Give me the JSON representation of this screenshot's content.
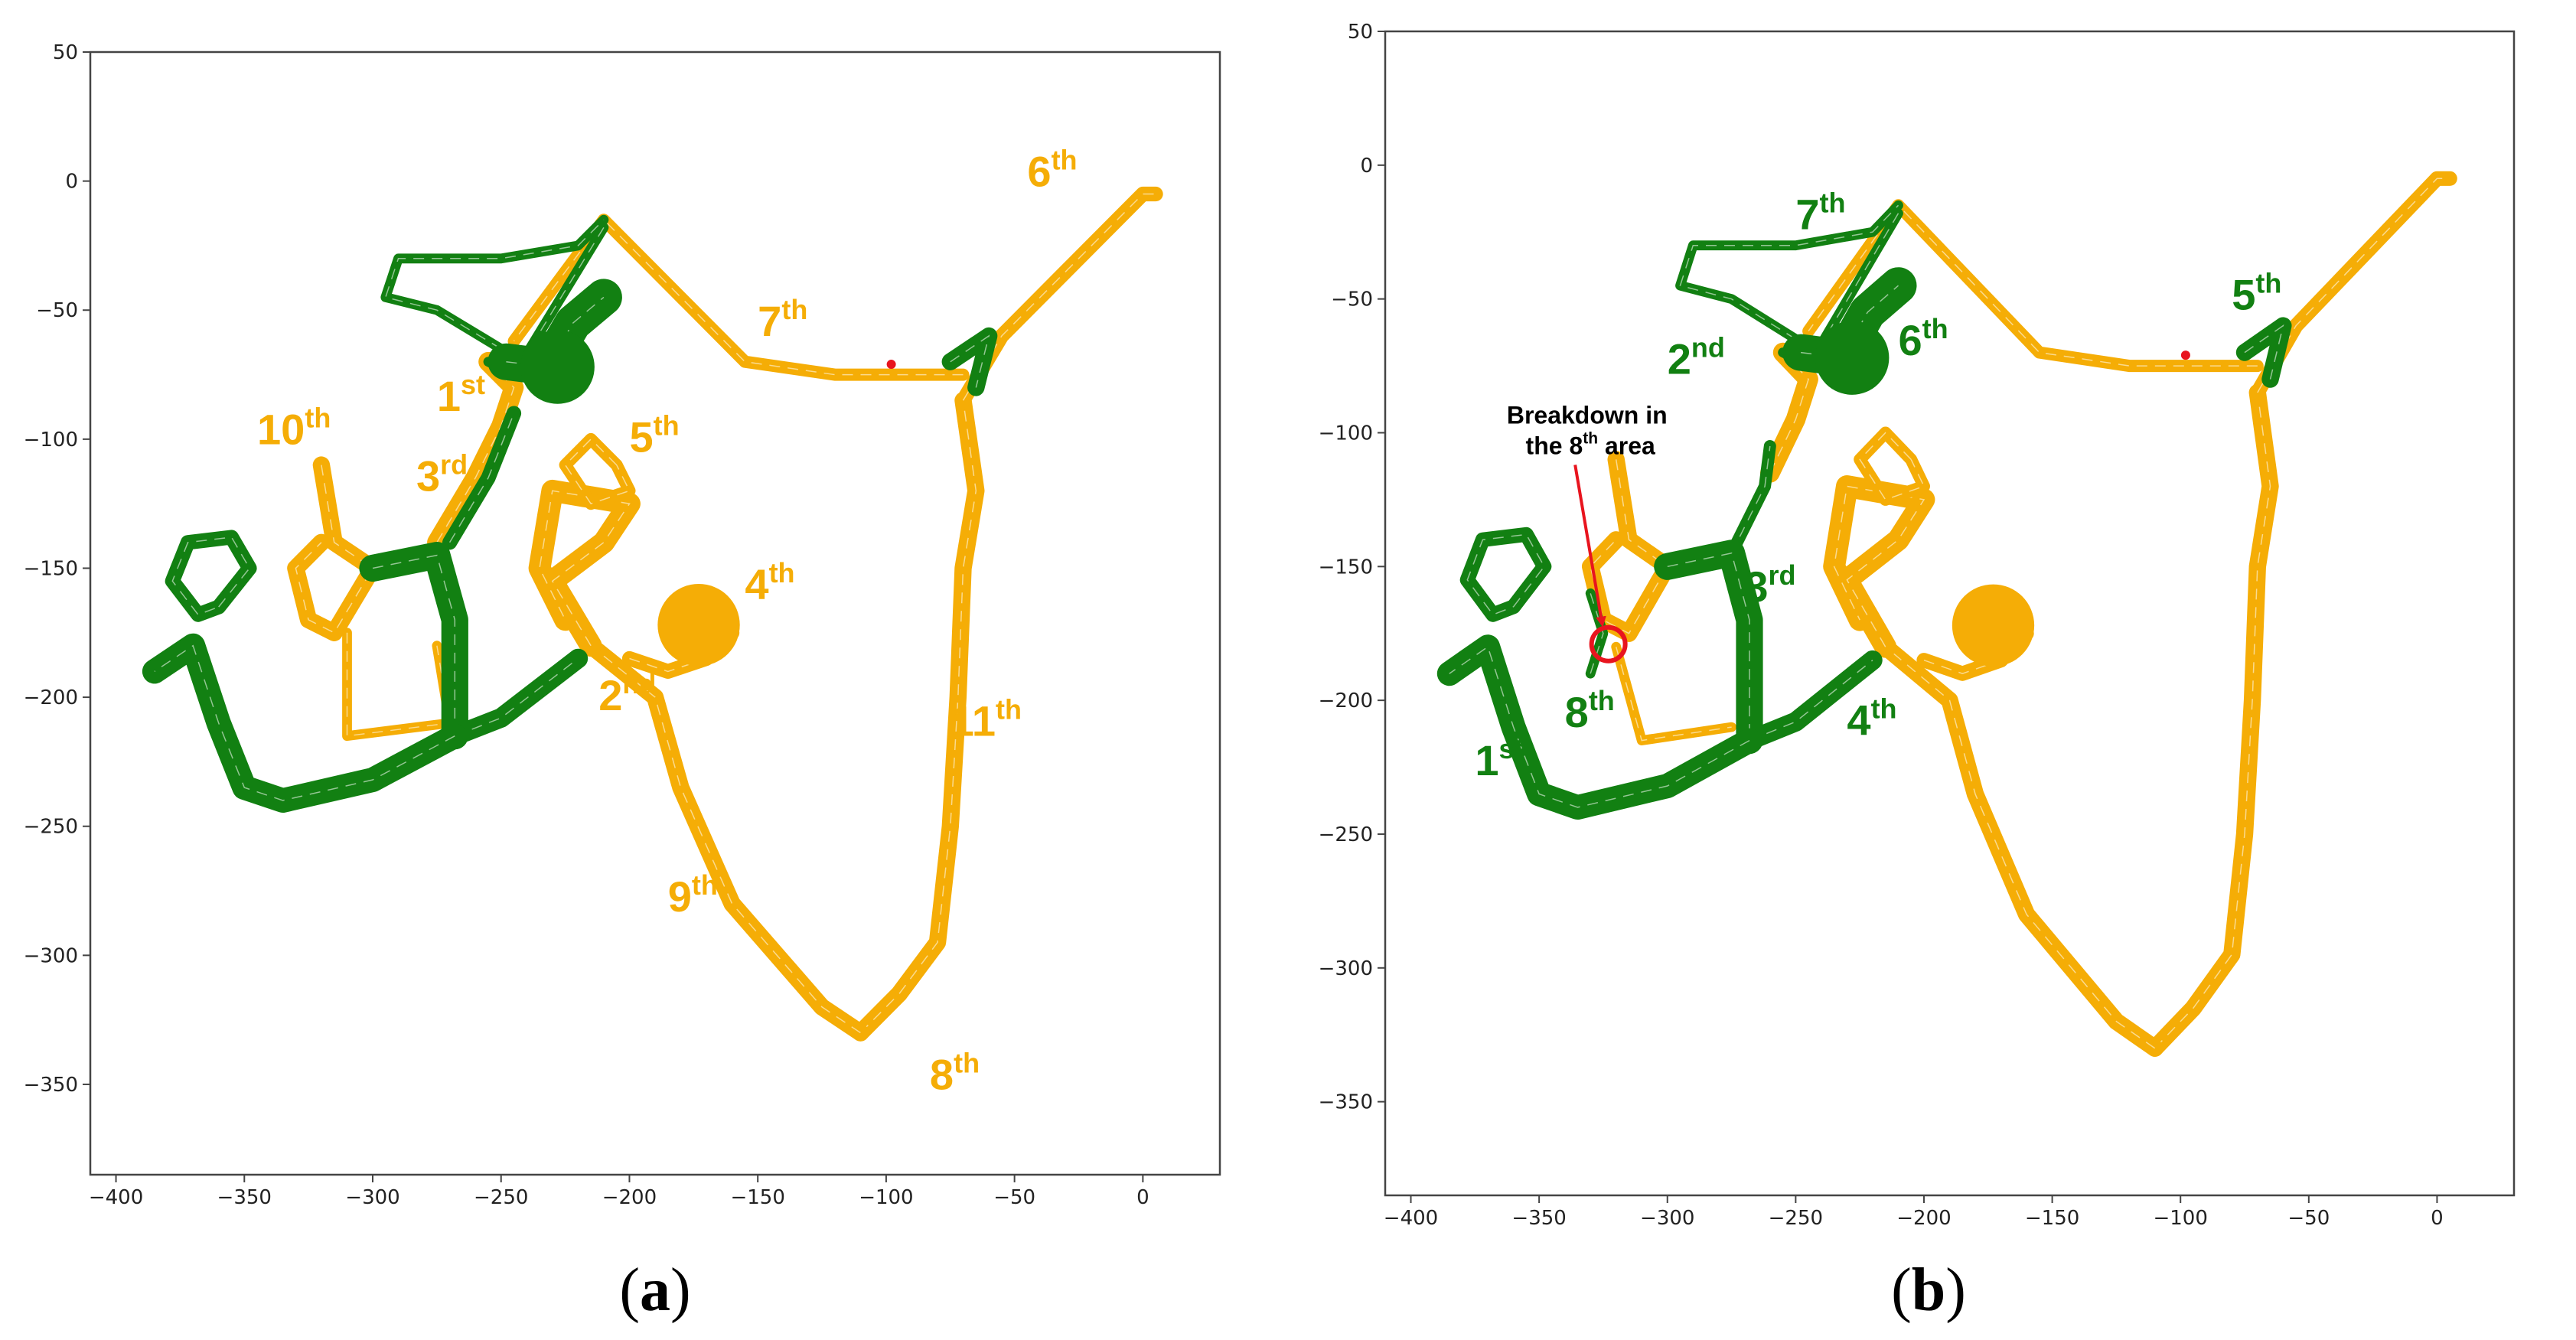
{
  "colors": {
    "green": "#128012",
    "orange": "#f5ad06",
    "frame": "#444444",
    "marker": "#e8141e"
  },
  "chart_data": [
    {
      "type": "line",
      "panel": "a",
      "caption": {
        "open": "(",
        "letter": "a",
        "close": ")"
      },
      "xlim": [
        -410,
        30
      ],
      "ylim": [
        -385,
        50
      ],
      "xticks": [
        -400,
        -350,
        -300,
        -250,
        -200,
        -150,
        -100,
        -50,
        0
      ],
      "yticks": [
        50,
        0,
        -50,
        -100,
        -150,
        -200,
        -250,
        -300,
        -350
      ],
      "labels": [
        {
          "id": "area-1st",
          "num": "1",
          "sup": "st",
          "x": -275,
          "y": -89,
          "color": "orange"
        },
        {
          "id": "area-2nd",
          "num": "2",
          "sup": "nd",
          "x": -212,
          "y": -205,
          "color": "orange"
        },
        {
          "id": "area-3rd",
          "num": "3",
          "sup": "rd",
          "x": -283,
          "y": -120,
          "color": "orange"
        },
        {
          "id": "area-4th",
          "num": "4",
          "sup": "th",
          "x": -155,
          "y": -162,
          "color": "orange"
        },
        {
          "id": "area-5th",
          "num": "5",
          "sup": "th",
          "x": -200,
          "y": -105,
          "color": "orange"
        },
        {
          "id": "area-6th",
          "num": "6",
          "sup": "th",
          "x": -45,
          "y": -2,
          "color": "orange"
        },
        {
          "id": "area-7th",
          "num": "7",
          "sup": "th",
          "x": -150,
          "y": -60,
          "color": "orange"
        },
        {
          "id": "area-8th",
          "num": "8",
          "sup": "th",
          "x": -83,
          "y": -352,
          "color": "orange"
        },
        {
          "id": "area-9th",
          "num": "9",
          "sup": "th",
          "x": -185,
          "y": -283,
          "color": "orange"
        },
        {
          "id": "area-10th",
          "num": "10",
          "sup": "th",
          "x": -345,
          "y": -102,
          "color": "orange"
        },
        {
          "id": "area-11th",
          "num": "11",
          "sup": "th",
          "x": -75,
          "y": -215,
          "color": "orange"
        }
      ]
    },
    {
      "type": "line",
      "panel": "b",
      "caption": {
        "open": "(",
        "letter": "b",
        "close": ")"
      },
      "xlim": [
        -410,
        30
      ],
      "ylim": [
        -385,
        50
      ],
      "xticks": [
        -400,
        -350,
        -300,
        -250,
        -200,
        -150,
        -100,
        -50,
        0
      ],
      "yticks": [
        50,
        0,
        -50,
        -100,
        -150,
        -200,
        -250,
        -300,
        -350
      ],
      "labels": [
        {
          "id": "area-1st",
          "num": "1",
          "sup": "st",
          "x": -375,
          "y": -228,
          "color": "green"
        },
        {
          "id": "area-2nd",
          "num": "2",
          "sup": "nd",
          "x": -300,
          "y": -78,
          "color": "green"
        },
        {
          "id": "area-3rd",
          "num": "3",
          "sup": "rd",
          "x": -270,
          "y": -163,
          "color": "green"
        },
        {
          "id": "area-4th",
          "num": "4",
          "sup": "th",
          "x": -230,
          "y": -213,
          "color": "green"
        },
        {
          "id": "area-5th",
          "num": "5",
          "sup": "th",
          "x": -80,
          "y": -54,
          "color": "green"
        },
        {
          "id": "area-6th",
          "num": "6",
          "sup": "th",
          "x": -210,
          "y": -71,
          "color": "green"
        },
        {
          "id": "area-7th",
          "num": "7",
          "sup": "th",
          "x": -250,
          "y": -24,
          "color": "green"
        },
        {
          "id": "area-8th",
          "num": "8",
          "sup": "th",
          "x": -340,
          "y": -210,
          "color": "green"
        }
      ],
      "annotation": {
        "line1": "Breakdown in",
        "line2_prefix": "the 8",
        "line2_sup": "th",
        "line2_suffix": " area",
        "point": {
          "x": -323,
          "y": -179
        },
        "text_pos": {
          "x": -330,
          "y": -108
        }
      }
    }
  ]
}
